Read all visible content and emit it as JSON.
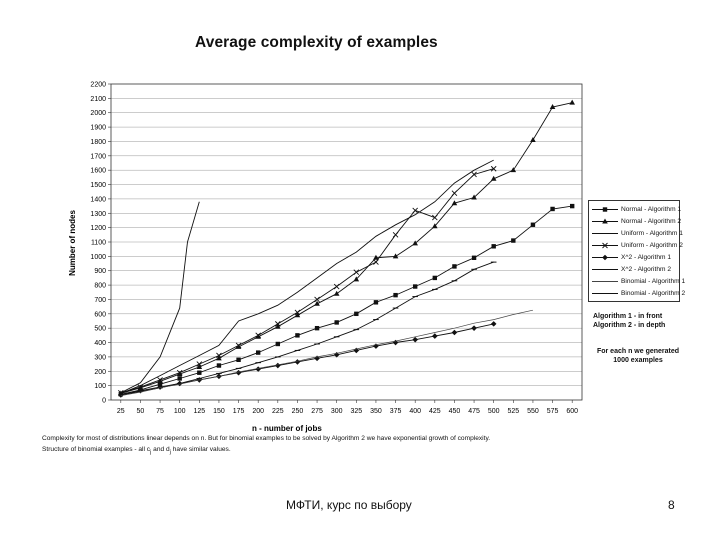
{
  "page": {
    "footer_left": "МФТИ, курс по выбору",
    "page_number": "8"
  },
  "notes": {
    "algorithms_line1": "Algorithm 1 - in front",
    "algorithms_line2": "Algorithm 2 - in depth",
    "generated_line1": "For each n we generated",
    "generated_line2": "1000 examples"
  },
  "captions": {
    "line1": "Complexity for most of distributions linear depends on n. But for binomial examples to be solved by Algorithm 2 we have exponential growth of complexity.",
    "line2": "Structure of binomial examples - all c",
    "line2_sub1": "j",
    "line2_mid": " and d",
    "line2_sub2": "j",
    "line2_end": " have similar values."
  },
  "chart_data": {
    "type": "line",
    "title": "Average complexity of examples",
    "xlabel": "n - number of jobs",
    "ylabel": "Number of nodes",
    "x_ticks": [
      25,
      50,
      75,
      100,
      125,
      150,
      175,
      200,
      225,
      250,
      275,
      300,
      325,
      350,
      375,
      400,
      425,
      450,
      475,
      500,
      525,
      550,
      575,
      600
    ],
    "y_ticks": [
      0,
      100,
      200,
      300,
      400,
      500,
      600,
      700,
      800,
      900,
      1000,
      1100,
      1200,
      1300,
      1400,
      1500,
      1600,
      1700,
      1800,
      1900,
      2000,
      2100,
      2200
    ],
    "xlim": [
      12.5,
      612.5
    ],
    "ylim": [
      0,
      2200
    ],
    "grid": "horizontal",
    "legend_position": "right",
    "series": [
      {
        "name": "Normal - Algorithm 1",
        "marker": "square",
        "color": "#111111",
        "x": [
          25,
          50,
          75,
          100,
          125,
          150,
          175,
          200,
          225,
          250,
          275,
          300,
          325,
          350,
          375,
          400,
          425,
          450,
          475,
          500,
          525,
          550,
          575,
          600
        ],
        "y": [
          40,
          70,
          110,
          150,
          190,
          240,
          280,
          330,
          390,
          450,
          500,
          540,
          600,
          680,
          730,
          790,
          850,
          930,
          990,
          1070,
          1110,
          1220,
          1330,
          1350
        ]
      },
      {
        "name": "Normal - Algorithm 2",
        "marker": "triangle",
        "color": "#111111",
        "x": [
          25,
          50,
          75,
          100,
          125,
          150,
          175,
          200,
          225,
          250,
          275,
          300,
          325,
          350,
          375,
          400,
          425,
          450,
          475,
          500,
          525,
          550,
          575,
          600
        ],
        "y": [
          45,
          85,
          130,
          180,
          230,
          290,
          370,
          440,
          510,
          590,
          670,
          740,
          840,
          990,
          1000,
          1090,
          1210,
          1370,
          1410,
          1540,
          1600,
          1810,
          2040,
          2070
        ]
      },
      {
        "name": "Uniform - Algorithm 1",
        "marker": "tick",
        "color": "#111111",
        "x": [
          25,
          50,
          75,
          100,
          125,
          150,
          175,
          200,
          225,
          250,
          275,
          300,
          325,
          350,
          375,
          400,
          425,
          450,
          475,
          500
        ],
        "y": [
          35,
          60,
          85,
          115,
          150,
          185,
          220,
          260,
          300,
          345,
          390,
          440,
          490,
          560,
          640,
          720,
          770,
          830,
          910,
          960
        ]
      },
      {
        "name": "Uniform - Algorithm 2",
        "marker": "x",
        "color": "#111111",
        "x": [
          25,
          50,
          75,
          100,
          125,
          150,
          175,
          200,
          225,
          250,
          275,
          300,
          325,
          350,
          375,
          400,
          425,
          450,
          475,
          500
        ],
        "y": [
          50,
          90,
          140,
          190,
          250,
          310,
          380,
          450,
          530,
          610,
          700,
          790,
          890,
          960,
          1150,
          1320,
          1270,
          1440,
          1570,
          1610
        ]
      },
      {
        "name": "X^2 - Algorithm 1",
        "marker": "diamond",
        "color": "#111111",
        "x": [
          25,
          50,
          75,
          100,
          125,
          150,
          175,
          200,
          225,
          250,
          275,
          300,
          325,
          350,
          375,
          400,
          425,
          450,
          475,
          500
        ],
        "y": [
          35,
          65,
          90,
          115,
          140,
          165,
          190,
          215,
          240,
          265,
          290,
          315,
          345,
          375,
          400,
          420,
          445,
          470,
          500,
          530
        ]
      },
      {
        "name": "X^2 - Algorithm 2",
        "marker": "none",
        "color": "#111111",
        "x": [
          25,
          50,
          75,
          100,
          125,
          150,
          175,
          200,
          225,
          250,
          275,
          300,
          325,
          350,
          375,
          400,
          425,
          450,
          475,
          500
        ],
        "y": [
          45,
          100,
          170,
          240,
          310,
          380,
          550,
          600,
          660,
          750,
          850,
          950,
          1030,
          1140,
          1220,
          1290,
          1380,
          1510,
          1600,
          1670
        ]
      },
      {
        "name": "Binomial - Algorithm 1",
        "marker": "none",
        "color": "#444444",
        "x": [
          25,
          50,
          75,
          100,
          125,
          150,
          175,
          200,
          225,
          250,
          275,
          300,
          325,
          350,
          375,
          400,
          425,
          450,
          475,
          500,
          525,
          550
        ],
        "y": [
          30,
          55,
          85,
          110,
          140,
          165,
          195,
          220,
          245,
          270,
          300,
          325,
          355,
          385,
          410,
          440,
          470,
          500,
          535,
          560,
          595,
          625
        ]
      },
      {
        "name": "Binomial - Algorithm 2",
        "marker": "none",
        "color": "#111111",
        "x": [
          25,
          50,
          75,
          100,
          110,
          125
        ],
        "y": [
          50,
          120,
          300,
          640,
          1100,
          1380
        ]
      }
    ]
  }
}
